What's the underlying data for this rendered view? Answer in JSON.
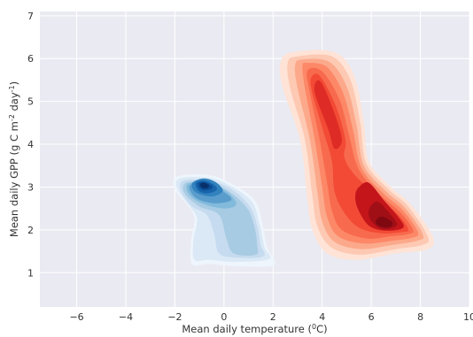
{
  "chart_data": {
    "type": "kde_contour",
    "xlabel": {
      "main": "Mean daily temperature (",
      "sup": "0",
      "tail": "C)"
    },
    "ylabel": {
      "main": "Mean daily GPP (g C m",
      "sup1": "-2",
      "mid": " day",
      "sup2": "-1",
      "tail": ")"
    },
    "xlim": [
      -7.5,
      10
    ],
    "ylim": [
      0.2,
      7.1
    ],
    "xticks": [
      -6,
      -4,
      -2,
      0,
      2,
      4,
      6,
      8,
      10
    ],
    "yticks": [
      1,
      2,
      3,
      4,
      5,
      6,
      7
    ],
    "grid": true,
    "background": "#eaeaf2",
    "series": [
      {
        "colormap": "Blues",
        "colors": [
          "#eef5fc",
          "#dbe9f6",
          "#c6dbef",
          "#a7cbe3",
          "#82badb",
          "#5a9dcc",
          "#3282be",
          "#1764ab",
          "#0b4d94",
          "#08306b"
        ],
        "levels": [
          [
            [
              -1.9,
              3.25
            ],
            [
              -0.6,
              3.28
            ],
            [
              0.4,
              3.05
            ],
            [
              1.25,
              2.7
            ],
            [
              1.55,
              2.2
            ],
            [
              1.75,
              1.6
            ],
            [
              2.05,
              1.3
            ],
            [
              1.9,
              1.15
            ],
            [
              0.5,
              1.15
            ],
            [
              -0.6,
              1.2
            ],
            [
              -1.3,
              1.2
            ],
            [
              -1.35,
              1.7
            ],
            [
              -1.2,
              2.25
            ],
            [
              -1.45,
              2.55
            ],
            [
              -2.0,
              2.95
            ]
          ],
          [
            [
              -1.8,
              3.2
            ],
            [
              -0.6,
              3.22
            ],
            [
              0.35,
              3.0
            ],
            [
              1.15,
              2.65
            ],
            [
              1.45,
              2.15
            ],
            [
              1.65,
              1.6
            ],
            [
              1.85,
              1.32
            ],
            [
              0.5,
              1.25
            ],
            [
              -0.6,
              1.3
            ],
            [
              -1.2,
              1.3
            ],
            [
              -1.25,
              1.75
            ],
            [
              -1.1,
              2.25
            ],
            [
              -1.4,
              2.55
            ],
            [
              -1.9,
              2.95
            ]
          ],
          [
            [
              -1.65,
              3.15
            ],
            [
              -0.6,
              3.15
            ],
            [
              0.3,
              2.95
            ],
            [
              1.05,
              2.55
            ],
            [
              1.35,
              2.1
            ],
            [
              1.5,
              1.65
            ],
            [
              1.6,
              1.38
            ],
            [
              0.5,
              1.35
            ],
            [
              -0.2,
              1.45
            ],
            [
              -0.4,
              1.9
            ],
            [
              -0.7,
              2.35
            ],
            [
              -1.3,
              2.55
            ],
            [
              -1.75,
              2.9
            ]
          ],
          [
            [
              -1.55,
              3.1
            ],
            [
              -0.6,
              3.1
            ],
            [
              0.2,
              2.9
            ],
            [
              0.95,
              2.5
            ],
            [
              1.25,
              2.05
            ],
            [
              1.35,
              1.65
            ],
            [
              1.3,
              1.42
            ],
            [
              0.4,
              1.45
            ],
            [
              0.1,
              1.8
            ],
            [
              -0.2,
              2.35
            ],
            [
              -1.0,
              2.55
            ],
            [
              -1.6,
              2.85
            ]
          ],
          [
            [
              -1.45,
              3.08
            ],
            [
              -0.7,
              3.08
            ],
            [
              0.1,
              2.9
            ],
            [
              0.5,
              2.6
            ],
            [
              0.0,
              2.5
            ],
            [
              -0.9,
              2.62
            ],
            [
              -1.45,
              2.85
            ]
          ],
          [
            [
              -1.35,
              3.05
            ],
            [
              -0.7,
              3.04
            ],
            [
              0.0,
              2.88
            ],
            [
              0.3,
              2.7
            ],
            [
              -0.3,
              2.62
            ],
            [
              -1.0,
              2.7
            ],
            [
              -1.35,
              2.88
            ]
          ],
          [
            [
              -1.25,
              3.12
            ],
            [
              -0.8,
              3.2
            ],
            [
              -0.3,
              3.1
            ],
            [
              -0.05,
              2.9
            ],
            [
              -0.5,
              2.78
            ],
            [
              -1.1,
              2.86
            ],
            [
              -1.3,
              3.0
            ]
          ],
          [
            [
              -1.15,
              3.1
            ],
            [
              -0.8,
              3.15
            ],
            [
              -0.4,
              3.05
            ],
            [
              -0.3,
              2.93
            ],
            [
              -0.7,
              2.85
            ],
            [
              -1.05,
              2.92
            ]
          ],
          [
            [
              -1.05,
              3.09
            ],
            [
              -0.8,
              3.12
            ],
            [
              -0.5,
              3.04
            ],
            [
              -0.5,
              2.96
            ],
            [
              -0.8,
              2.92
            ],
            [
              -1.0,
              2.98
            ]
          ],
          [
            [
              -0.95,
              3.08
            ],
            [
              -0.8,
              3.1
            ],
            [
              -0.62,
              3.04
            ],
            [
              -0.66,
              2.98
            ],
            [
              -0.85,
              2.97
            ],
            [
              -0.95,
              3.02
            ]
          ]
        ]
      },
      {
        "colormap": "Reds",
        "colors": [
          "#fee3d6",
          "#fdc9b3",
          "#fca98b",
          "#fc8868",
          "#f86a4d",
          "#f24a35",
          "#de2b25",
          "#c4151b",
          "#a10f16",
          "#7f0811"
        ],
        "levels": [
          [
            [
              2.3,
              5.9
            ],
            [
              2.8,
              6.15
            ],
            [
              4.5,
              6.15
            ],
            [
              5.3,
              5.6
            ],
            [
              5.7,
              4.5
            ],
            [
              5.9,
              3.6
            ],
            [
              6.8,
              3.0
            ],
            [
              7.6,
              2.6
            ],
            [
              8.5,
              1.85
            ],
            [
              8.3,
              1.55
            ],
            [
              7.0,
              1.45
            ],
            [
              5.4,
              1.3
            ],
            [
              4.2,
              1.45
            ],
            [
              3.6,
              2.0
            ],
            [
              3.4,
              2.7
            ],
            [
              3.1,
              4.1
            ],
            [
              2.4,
              5.3
            ]
          ],
          [
            [
              2.6,
              5.9
            ],
            [
              3.0,
              6.05
            ],
            [
              4.4,
              6.05
            ],
            [
              5.15,
              5.5
            ],
            [
              5.55,
              4.5
            ],
            [
              5.8,
              3.55
            ],
            [
              6.7,
              2.95
            ],
            [
              7.5,
              2.55
            ],
            [
              8.3,
              1.85
            ],
            [
              8.1,
              1.65
            ],
            [
              7.0,
              1.55
            ],
            [
              5.5,
              1.42
            ],
            [
              4.35,
              1.6
            ],
            [
              3.8,
              2.1
            ],
            [
              3.6,
              2.8
            ],
            [
              3.3,
              4.1
            ],
            [
              2.7,
              5.3
            ]
          ],
          [
            [
              2.9,
              5.85
            ],
            [
              3.2,
              5.98
            ],
            [
              4.3,
              5.92
            ],
            [
              5.0,
              5.35
            ],
            [
              5.4,
              4.45
            ],
            [
              5.7,
              3.5
            ],
            [
              6.6,
              2.9
            ],
            [
              7.4,
              2.5
            ],
            [
              8.1,
              1.9
            ],
            [
              7.9,
              1.75
            ],
            [
              6.9,
              1.65
            ],
            [
              5.6,
              1.55
            ],
            [
              4.5,
              1.72
            ],
            [
              4.0,
              2.2
            ],
            [
              3.8,
              2.9
            ],
            [
              3.5,
              4.1
            ],
            [
              3.0,
              5.3
            ]
          ],
          [
            [
              3.2,
              5.82
            ],
            [
              3.4,
              5.9
            ],
            [
              4.2,
              5.8
            ],
            [
              4.85,
              5.2
            ],
            [
              5.25,
              4.35
            ],
            [
              5.6,
              3.45
            ],
            [
              6.5,
              2.85
            ],
            [
              7.3,
              2.45
            ],
            [
              7.9,
              1.95
            ],
            [
              7.7,
              1.82
            ],
            [
              6.9,
              1.75
            ],
            [
              5.7,
              1.68
            ],
            [
              4.65,
              1.85
            ],
            [
              4.2,
              2.3
            ],
            [
              4.0,
              3.0
            ],
            [
              3.7,
              4.1
            ],
            [
              3.3,
              5.3
            ]
          ],
          [
            [
              3.4,
              5.72
            ],
            [
              4.0,
              5.7
            ],
            [
              4.7,
              5.05
            ],
            [
              5.1,
              4.2
            ],
            [
              5.5,
              3.4
            ],
            [
              6.4,
              2.8
            ],
            [
              7.2,
              2.4
            ],
            [
              7.7,
              2.0
            ],
            [
              7.5,
              1.9
            ],
            [
              6.8,
              1.85
            ],
            [
              5.8,
              1.8
            ],
            [
              4.8,
              2.0
            ],
            [
              4.4,
              2.45
            ],
            [
              4.2,
              3.1
            ],
            [
              3.9,
              4.1
            ],
            [
              3.5,
              5.2
            ]
          ],
          [
            [
              3.55,
              5.55
            ],
            [
              3.9,
              5.6
            ],
            [
              4.55,
              4.9
            ],
            [
              4.95,
              4.1
            ],
            [
              4.9,
              3.7
            ],
            [
              5.3,
              3.3
            ],
            [
              6.3,
              2.75
            ],
            [
              7.1,
              2.35
            ],
            [
              7.5,
              2.02
            ],
            [
              7.3,
              1.95
            ],
            [
              6.4,
              1.92
            ],
            [
              5.5,
              2.05
            ],
            [
              4.9,
              2.4
            ],
            [
              4.5,
              2.9
            ],
            [
              4.4,
              3.6
            ],
            [
              4.05,
              4.3
            ],
            [
              3.6,
              5.2
            ]
          ],
          [
            [
              3.7,
              5.4
            ],
            [
              3.95,
              5.45
            ],
            [
              4.45,
              4.8
            ],
            [
              4.8,
              4.1
            ],
            [
              4.5,
              3.9
            ],
            [
              4.25,
              4.35
            ],
            [
              3.75,
              5.1
            ]
          ],
          [
            [
              5.5,
              3.0
            ],
            [
              5.9,
              3.1
            ],
            [
              6.5,
              2.7
            ],
            [
              7.1,
              2.3
            ],
            [
              7.3,
              2.05
            ],
            [
              6.6,
              1.98
            ],
            [
              5.9,
              2.1
            ],
            [
              5.45,
              2.5
            ],
            [
              5.35,
              2.8
            ]
          ],
          [
            [
              6.05,
              2.6
            ],
            [
              6.3,
              2.65
            ],
            [
              6.8,
              2.35
            ],
            [
              7.05,
              2.12
            ],
            [
              6.7,
              2.02
            ],
            [
              6.3,
              2.05
            ],
            [
              5.95,
              2.25
            ],
            [
              5.9,
              2.45
            ]
          ],
          [
            [
              6.25,
              2.27
            ],
            [
              6.5,
              2.3
            ],
            [
              6.85,
              2.18
            ],
            [
              6.8,
              2.08
            ],
            [
              6.5,
              2.06
            ],
            [
              6.2,
              2.14
            ]
          ]
        ]
      }
    ]
  }
}
